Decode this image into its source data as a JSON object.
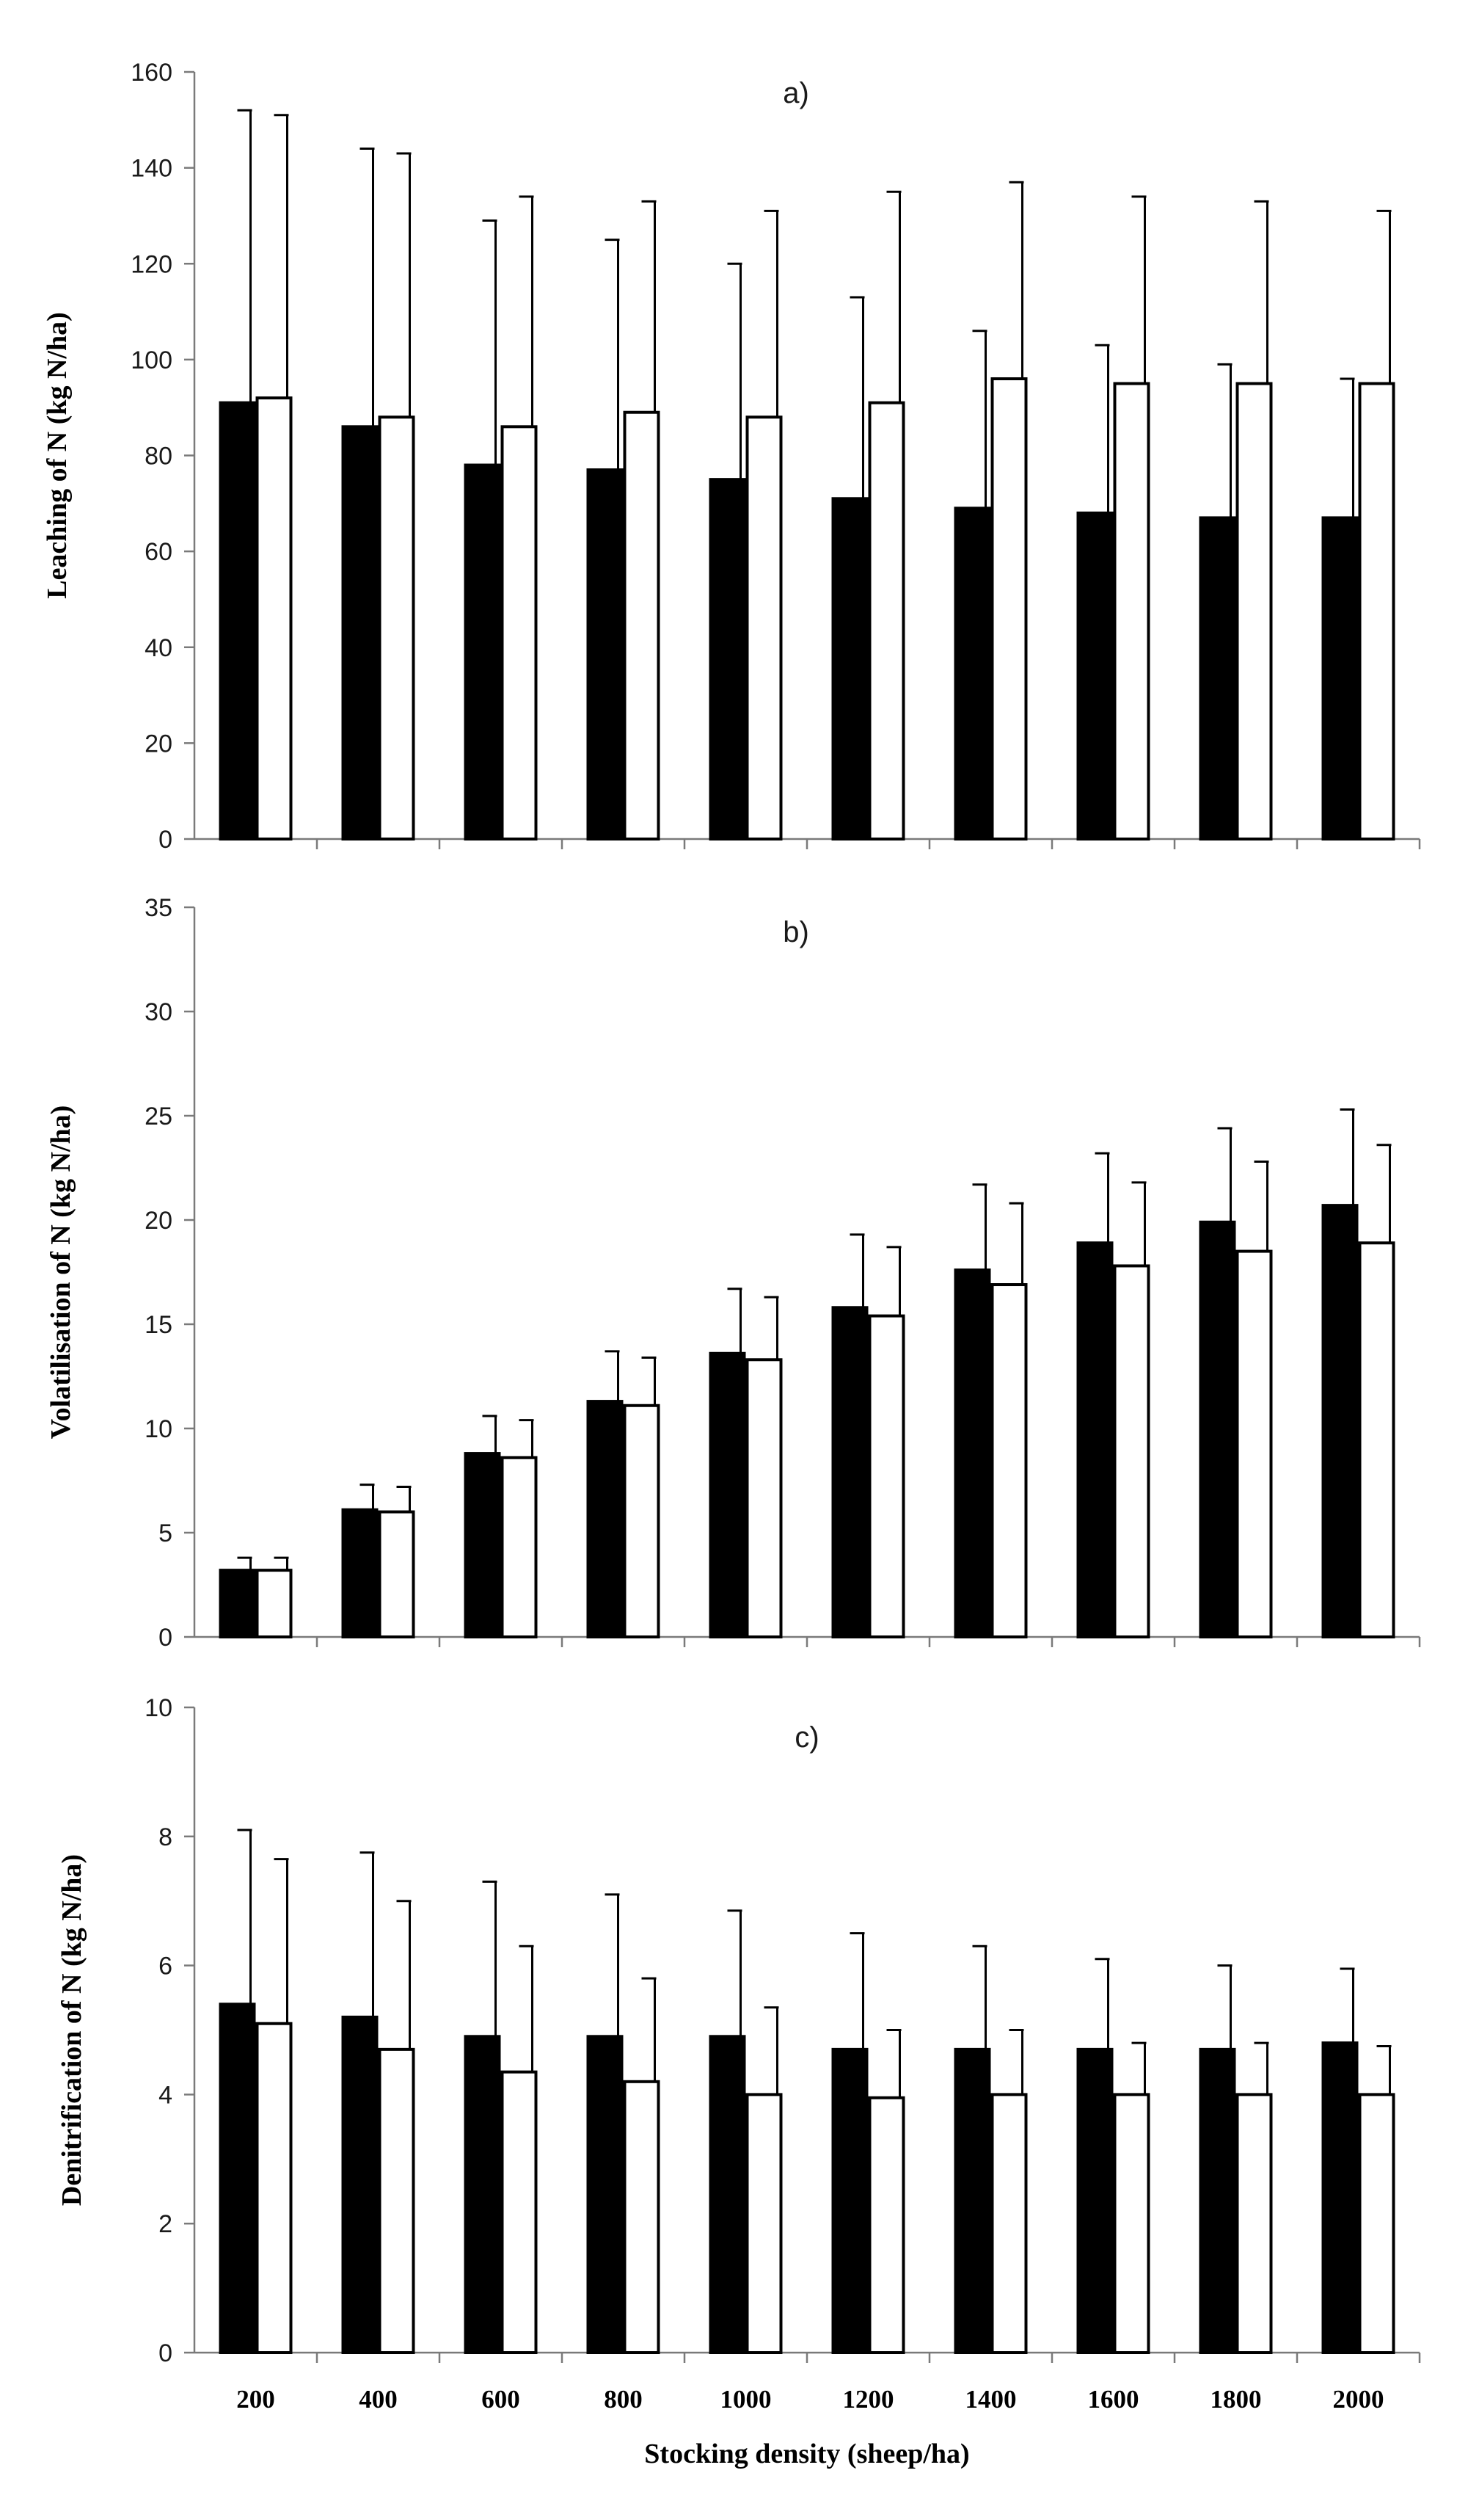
{
  "chart_data": [
    {
      "id": "a",
      "type": "bar",
      "panel_label": "a)",
      "ylabel": "Leaching of N (kg N/ha)",
      "ylim": [
        0,
        160
      ],
      "yticks": [
        "0",
        "20",
        "40",
        "60",
        "80",
        "100",
        "120",
        "140",
        "160"
      ],
      "categories": [
        "200",
        "400",
        "600",
        "800",
        "1000",
        "1200",
        "1400",
        "1600",
        "1800",
        "2000"
      ],
      "series": [
        {
          "name": "filled",
          "color": "#000000",
          "values": [
            91,
            86,
            78,
            77,
            75,
            71,
            69,
            68,
            67,
            67
          ],
          "errors": [
            61,
            58,
            51,
            48,
            45,
            42,
            37,
            35,
            32,
            29
          ]
        },
        {
          "name": "open",
          "color": "#ffffff",
          "values": [
            92,
            88,
            86,
            89,
            88,
            91,
            96,
            95,
            95,
            95
          ],
          "errors": [
            59,
            55,
            48,
            44,
            43,
            44,
            41,
            39,
            38,
            36
          ]
        }
      ]
    },
    {
      "id": "b",
      "type": "bar",
      "panel_label": "b)",
      "ylabel": "Volatilisation of N (kg N/ha)",
      "ylim": [
        0,
        35
      ],
      "yticks": [
        "0",
        "5",
        "10",
        "15",
        "20",
        "25",
        "30",
        "35"
      ],
      "categories": [
        "200",
        "400",
        "600",
        "800",
        "1000",
        "1200",
        "1400",
        "1600",
        "1800",
        "2000"
      ],
      "series": [
        {
          "name": "filled",
          "color": "#000000",
          "values": [
            3.2,
            6.1,
            8.8,
            11.3,
            13.6,
            15.8,
            17.6,
            18.9,
            19.9,
            20.7
          ],
          "errors": [
            0.6,
            1.2,
            1.8,
            2.4,
            3.1,
            3.5,
            4.1,
            4.3,
            4.5,
            4.6
          ]
        },
        {
          "name": "open",
          "color": "#ffffff",
          "values": [
            3.2,
            6.0,
            8.6,
            11.1,
            13.3,
            15.4,
            16.9,
            17.8,
            18.5,
            18.9
          ],
          "errors": [
            0.6,
            1.2,
            1.8,
            2.3,
            3.0,
            3.3,
            3.9,
            4.0,
            4.3,
            4.7
          ]
        }
      ]
    },
    {
      "id": "c",
      "type": "bar",
      "panel_label": "c)",
      "ylabel": "Denitrification of N (kg N/ha)",
      "xlabel": "Stocking density (sheep/ha)",
      "ylim": [
        0,
        10
      ],
      "yticks": [
        "0",
        "2",
        "4",
        "6",
        "8",
        "10"
      ],
      "categories": [
        "200",
        "400",
        "600",
        "800",
        "1000",
        "1200",
        "1400",
        "1600",
        "1800",
        "2000"
      ],
      "series": [
        {
          "name": "filled",
          "color": "#000000",
          "values": [
            5.4,
            5.2,
            4.9,
            4.9,
            4.9,
            4.7,
            4.7,
            4.7,
            4.7,
            4.8
          ],
          "errors": [
            2.7,
            2.55,
            2.4,
            2.2,
            1.95,
            1.8,
            1.6,
            1.4,
            1.3,
            1.15
          ]
        },
        {
          "name": "open",
          "color": "#ffffff",
          "values": [
            5.1,
            4.7,
            4.35,
            4.2,
            4.0,
            3.95,
            4.0,
            4.0,
            4.0,
            4.0
          ],
          "errors": [
            2.55,
            2.3,
            1.95,
            1.6,
            1.35,
            1.05,
            1.0,
            0.8,
            0.8,
            0.75
          ]
        }
      ]
    }
  ]
}
